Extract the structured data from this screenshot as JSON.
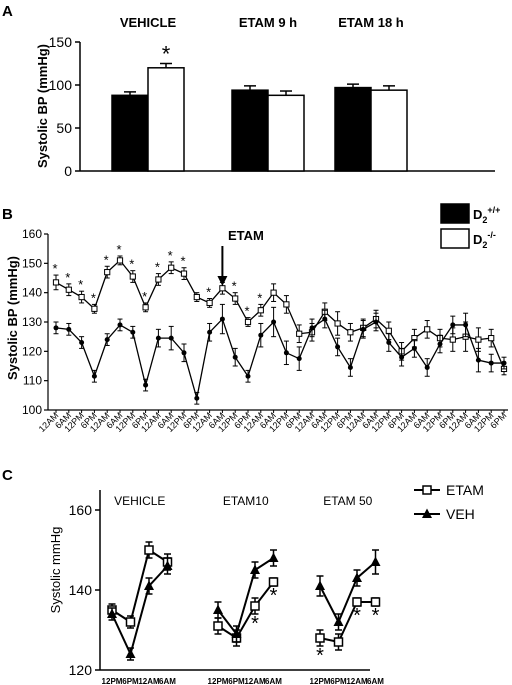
{
  "panels": {
    "a": "A",
    "b": "B",
    "c": "C"
  },
  "chart_data": [
    {
      "type": "bar",
      "panel": "A",
      "ylabel": "Systolic BP (mmHg)",
      "ylim": [
        0,
        150
      ],
      "yticks": [
        "0",
        "50",
        "100",
        "150"
      ],
      "groups": [
        "VEHICLE",
        "ETAM 9 h",
        "ETAM 18 h"
      ],
      "series": [
        {
          "key": "D2+/+",
          "fill": "#000000",
          "values": [
            88,
            94,
            97
          ],
          "errors": [
            4,
            5,
            4
          ]
        },
        {
          "key": "D2-/-",
          "fill": "#ffffff",
          "values": [
            120,
            88,
            94
          ],
          "errors": [
            5,
            5,
            5
          ]
        }
      ],
      "annotations": [
        {
          "group": 0,
          "series": 1,
          "text": "*"
        }
      ]
    },
    {
      "type": "line",
      "panel": "B",
      "ylabel": "Systolic BP (mmHg)",
      "ylim": [
        100,
        160
      ],
      "yticks": [
        "100",
        "110",
        "120",
        "130",
        "140",
        "150",
        "160"
      ],
      "xticks": [
        "12AM",
        "6AM",
        "12PM",
        "6PM",
        "12AM",
        "6AM",
        "12PM",
        "6PM",
        "12AM",
        "6AM",
        "12PM",
        "6PM",
        "12AM",
        "6AM",
        "12PM",
        "6PM",
        "12AM",
        "6AM",
        "12PM",
        "6PM",
        "12AM",
        "6AM",
        "12PM",
        "6PM",
        "12AM",
        "6AM",
        "12PM",
        "6PM",
        "12AM",
        "6AM",
        "12PM",
        "6PM",
        "12AM",
        "6AM",
        "12PM",
        "6PM"
      ],
      "legend": [
        {
          "label": "D",
          "sub": "2",
          "sup": "+/+",
          "fill": "#000000"
        },
        {
          "label": "D",
          "sub": "2",
          "sup": "-/-",
          "fill": "#ffffff"
        }
      ],
      "arrow_label": "ETAM",
      "arrow_index": 13,
      "series": [
        {
          "key": "D2-/-",
          "marker": "open-square",
          "values": [
            143.5,
            141,
            138.5,
            134.5,
            147,
            151,
            145.5,
            135,
            144.5,
            148.5,
            146.5,
            138.5,
            136.5,
            141.5,
            138,
            130,
            134,
            140,
            136,
            126,
            126.5,
            133.5,
            129.5,
            126.5,
            128,
            131,
            127,
            120,
            124.5,
            127.5,
            124.5,
            124,
            125,
            124,
            124.5,
            114
          ],
          "errors": [
            2.5,
            2,
            2,
            1.5,
            2,
            1.5,
            2,
            1.5,
            2,
            2,
            2,
            1.5,
            1.5,
            2,
            2,
            1.5,
            2,
            3,
            3,
            3,
            3,
            3,
            4,
            3,
            3,
            3,
            3,
            3,
            3,
            3,
            3,
            4,
            5,
            4,
            3,
            2
          ]
        },
        {
          "key": "D2+/+",
          "marker": "filled-circle",
          "values": [
            128,
            127.5,
            123,
            111.5,
            124,
            129,
            126.5,
            108.5,
            124.5,
            124.5,
            119.5,
            104,
            126.5,
            131,
            118,
            111.5,
            125.5,
            130,
            119.5,
            117.5,
            128,
            131,
            121.5,
            114.5,
            127.5,
            130,
            123,
            118,
            121,
            114.5,
            122.5,
            129,
            129,
            117,
            116,
            116
          ],
          "errors": [
            2,
            2,
            2,
            2,
            2,
            2,
            2,
            2,
            3,
            4,
            3,
            2,
            3,
            5,
            3,
            2,
            4,
            5,
            4,
            4,
            3,
            3,
            3,
            3,
            3,
            3,
            3,
            3,
            3,
            3,
            3,
            3,
            4,
            4,
            3,
            2
          ]
        }
      ],
      "stars": [
        {
          "index": 0,
          "text": "*"
        },
        {
          "index": 1,
          "text": "*"
        },
        {
          "index": 2,
          "text": "*"
        },
        {
          "index": 3,
          "text": "*"
        },
        {
          "index": 4,
          "text": "*"
        },
        {
          "index": 5,
          "text": "*"
        },
        {
          "index": 6,
          "text": "*"
        },
        {
          "index": 7,
          "text": "*"
        },
        {
          "index": 8,
          "text": "*"
        },
        {
          "index": 9,
          "text": "*"
        },
        {
          "index": 10,
          "text": "*"
        },
        {
          "index": 12,
          "text": "*"
        },
        {
          "index": 14,
          "text": "*"
        },
        {
          "index": 15,
          "text": "*"
        },
        {
          "index": 16,
          "text": "*"
        }
      ]
    },
    {
      "type": "line",
      "panel": "C",
      "ylabel": "Systolic mmHg",
      "ylim": [
        120,
        165
      ],
      "yticks": [
        "120",
        "140",
        "160"
      ],
      "groups": [
        "VEHICLE",
        "ETAM10",
        "ETAM 50"
      ],
      "xticks": [
        "12PM",
        "6PM",
        "12AM",
        "6AM"
      ],
      "legend": [
        {
          "label": "ETAM",
          "marker": "open-square"
        },
        {
          "label": "VEH",
          "marker": "filled-triangle"
        }
      ],
      "subplots": [
        {
          "series": [
            {
              "name": "ETAM",
              "values": [
                135,
                132,
                150,
                147
              ],
              "errors": [
                1.5,
                1.5,
                2,
                2
              ]
            },
            {
              "name": "VEH",
              "values": [
                134,
                124,
                141,
                146
              ],
              "errors": [
                1.5,
                1.5,
                2,
                2
              ]
            }
          ],
          "stars": []
        },
        {
          "series": [
            {
              "name": "ETAM",
              "values": [
                131,
                128,
                136,
                142
              ],
              "errors": [
                2,
                2,
                2,
                1
              ]
            },
            {
              "name": "VEH",
              "values": [
                135,
                129,
                145,
                148
              ],
              "errors": [
                2,
                2,
                2,
                2
              ]
            }
          ],
          "stars": [
            {
              "index": 2,
              "text": "*"
            },
            {
              "index": 3,
              "text": "*"
            }
          ]
        },
        {
          "series": [
            {
              "name": "ETAM",
              "values": [
                128,
                127,
                137,
                137
              ],
              "errors": [
                2,
                2,
                1,
                1
              ]
            },
            {
              "name": "VEH",
              "values": [
                141,
                132,
                143,
                147
              ],
              "errors": [
                2.5,
                2,
                2,
                3
              ]
            }
          ],
          "stars": [
            {
              "index": 0,
              "text": "*"
            },
            {
              "index": 2,
              "text": "*"
            },
            {
              "index": 3,
              "text": "*"
            }
          ]
        }
      ]
    }
  ]
}
